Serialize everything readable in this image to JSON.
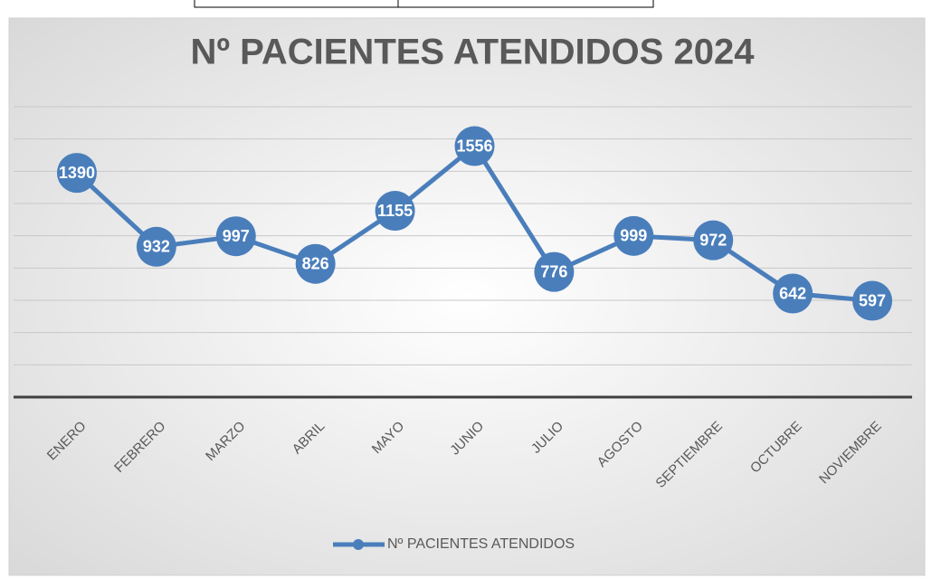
{
  "chart_data": {
    "type": "line",
    "title": "Nº PACIENTES ATENDIDOS 2024",
    "categories": [
      "ENERO",
      "FEBRERO",
      "MARZO",
      "ABRIL",
      "MAYO",
      "JUNIO",
      "JULIO",
      "AGOSTO",
      "SEPTIEMBRE",
      "OCTUBRE",
      "NOVIEMBRE"
    ],
    "series": [
      {
        "name": "Nº PACIENTES ATENDIDOS",
        "color": "#4a7ebb",
        "values": [
          1390,
          932,
          997,
          826,
          1155,
          1556,
          776,
          999,
          972,
          642,
          597
        ]
      }
    ],
    "ylim": [
      0,
      1800
    ],
    "yticks": [
      0,
      200,
      400,
      600,
      800,
      1000,
      1200,
      1400,
      1600,
      1800
    ],
    "grid": true,
    "legend": "bottom"
  }
}
